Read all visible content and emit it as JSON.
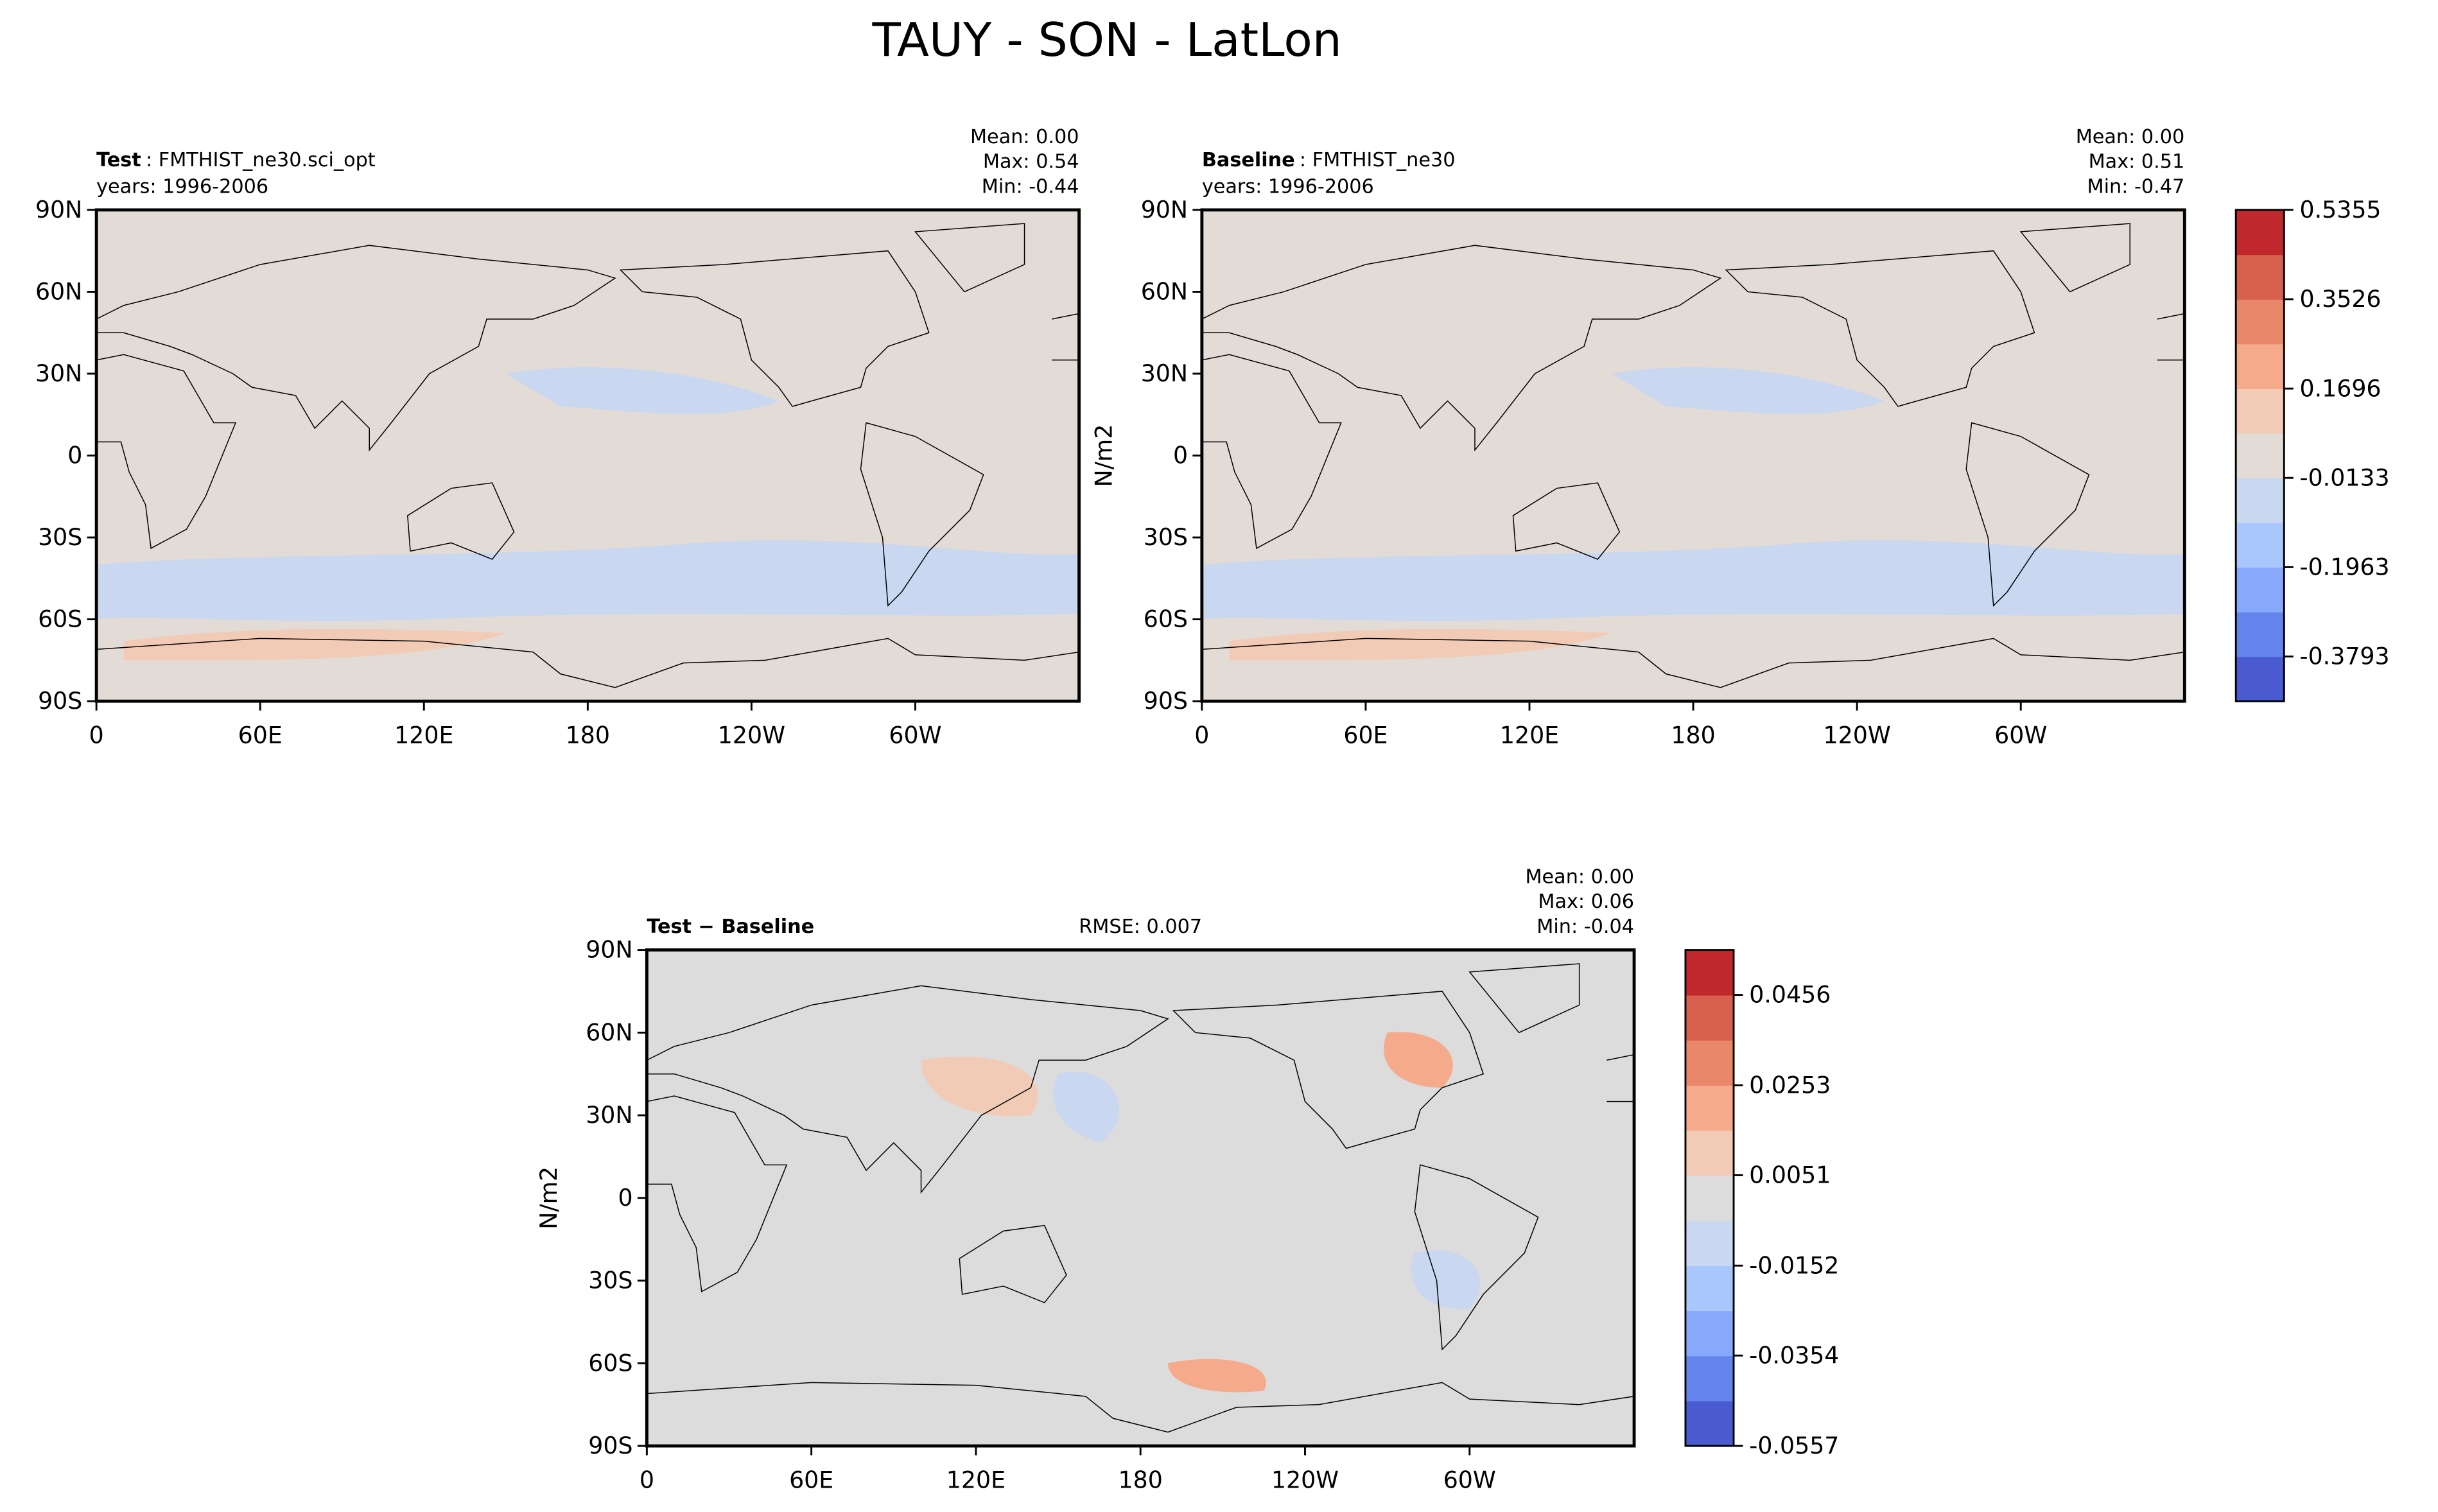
{
  "title": "TAUY - SON - LatLon",
  "chart_data": [
    {
      "type": "contour",
      "title_bold": "Test",
      "title_rest": ": FMTHIST_ne30.sci_opt",
      "subtitle": "years: 1996-2006",
      "stats": [
        "Mean:  0.00",
        "Max:  0.54",
        "Min: -0.44"
      ],
      "fill": "#e3dbd6",
      "xlim": [
        0,
        360
      ],
      "ylim": [
        -90,
        90
      ],
      "xticks": [
        0,
        {
          "value": 60,
          "label": "60E"
        },
        {
          "value": 120,
          "label": "120E"
        },
        180,
        {
          "value": 240,
          "label": "120W"
        },
        {
          "value": 300,
          "label": "60W"
        }
      ],
      "yticks": [
        {
          "value": 90,
          "label": "90N"
        },
        {
          "value": 60,
          "label": "60N"
        },
        {
          "value": 30,
          "label": "30N"
        },
        0,
        {
          "value": -30,
          "label": "30S"
        },
        {
          "value": -60,
          "label": "60S"
        },
        {
          "value": -90,
          "label": "90S"
        }
      ]
    },
    {
      "type": "contour",
      "title_bold": "Baseline",
      "title_rest": ": FMTHIST_ne30",
      "subtitle": "years: 1996-2006",
      "stats": [
        "Mean:  0.00",
        "Max:  0.51",
        "Min: -0.47"
      ],
      "fill": "#e3dbd6",
      "ylabel": "N/m2",
      "xlim": [
        0,
        360
      ],
      "ylim": [
        -90,
        90
      ],
      "xticks": [
        0,
        {
          "value": 60,
          "label": "60E"
        },
        {
          "value": 120,
          "label": "120E"
        },
        180,
        {
          "value": 240,
          "label": "120W"
        },
        {
          "value": 300,
          "label": "60W"
        }
      ],
      "yticks": [
        {
          "value": 90,
          "label": "90N"
        },
        {
          "value": 60,
          "label": "60N"
        },
        {
          "value": 30,
          "label": "30N"
        },
        0,
        {
          "value": -30,
          "label": "30S"
        },
        {
          "value": -60,
          "label": "60S"
        },
        {
          "value": -90,
          "label": "90S"
        }
      ],
      "colorbar": {
        "clim": [
          -0.4708,
          0.5355
        ],
        "ticks": [
          -0.3793,
          -0.1963,
          -0.0133,
          0.1696,
          0.3526,
          0.5355
        ],
        "colors": [
          "#4a5bd2",
          "#6384eb",
          "#88a9fb",
          "#aac7fd",
          "#c9d7f0",
          "#e3dbd6",
          "#f2cbb7",
          "#f5aa8c",
          "#e8876a",
          "#d7604e",
          "#c0282d"
        ]
      }
    },
    {
      "type": "contour",
      "title_bold": "Test − Baseline",
      "annotation": "RMSE: 0.007",
      "stats": [
        "Mean:  0.00",
        "Max:  0.06",
        "Min: -0.04"
      ],
      "fill": "#dcdcdc",
      "ylabel": "N/m2",
      "xlim": [
        0,
        360
      ],
      "ylim": [
        -90,
        90
      ],
      "xticks": [
        0,
        {
          "value": 60,
          "label": "60E"
        },
        {
          "value": 120,
          "label": "120E"
        },
        180,
        {
          "value": 240,
          "label": "120W"
        },
        {
          "value": 300,
          "label": "60W"
        }
      ],
      "yticks": [
        {
          "value": 90,
          "label": "90N"
        },
        {
          "value": 60,
          "label": "60N"
        },
        {
          "value": 30,
          "label": "30N"
        },
        0,
        {
          "value": -30,
          "label": "30S"
        },
        {
          "value": -60,
          "label": "60S"
        },
        {
          "value": -90,
          "label": "90S"
        }
      ],
      "colorbar": {
        "clim": [
          -0.0557,
          0.0557
        ],
        "ticks": [
          -0.0557,
          -0.0354,
          -0.0152,
          0.0051,
          0.0253,
          0.0456
        ],
        "colors": [
          "#4a5bd2",
          "#6384eb",
          "#88a9fb",
          "#aac7fd",
          "#c9d7f0",
          "#dcdcdc",
          "#f2cbb7",
          "#f5aa8c",
          "#e8876a",
          "#d7604e",
          "#c0282d"
        ]
      }
    }
  ]
}
